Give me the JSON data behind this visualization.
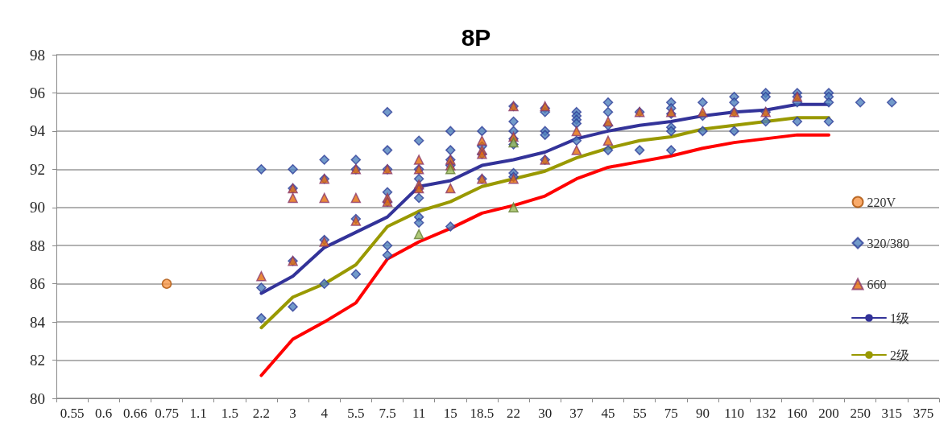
{
  "chart_data": {
    "type": "scatter",
    "title": "8P",
    "categories": [
      "0.55",
      "0.6",
      "0.66",
      "0.75",
      "1.1",
      "1.5",
      "2.2",
      "3",
      "4",
      "5.5",
      "7.5",
      "11",
      "15",
      "18.5",
      "22",
      "30",
      "37",
      "45",
      "55",
      "75",
      "90",
      "110",
      "132",
      "160",
      "200",
      "250",
      "315",
      "375"
    ],
    "ylim": [
      80,
      98
    ],
    "yticks": [
      80,
      82,
      84,
      86,
      88,
      90,
      92,
      94,
      96,
      98
    ],
    "grid": "y",
    "legend": "right",
    "series": [
      {
        "name": "220V",
        "marker": "circle",
        "color": "#f79646",
        "x": [
          "0.75"
        ],
        "values": [
          86.0
        ]
      },
      {
        "name": "320/380",
        "marker": "diamond",
        "color": "#4f81bd",
        "x": [
          "2.2",
          "2.2",
          "2.2",
          "3",
          "3",
          "3",
          "3",
          "4",
          "4",
          "4",
          "4",
          "5.5",
          "5.5",
          "5.5",
          "5.5",
          "7.5",
          "7.5",
          "7.5",
          "7.5",
          "7.5",
          "7.5",
          "7.5",
          "11",
          "11",
          "11",
          "11",
          "11",
          "11",
          "11",
          "15",
          "15",
          "15",
          "15",
          "15",
          "18.5",
          "18.5",
          "18.5",
          "18.5",
          "22",
          "22",
          "22",
          "22",
          "22",
          "22",
          "22",
          "30",
          "30",
          "30",
          "30",
          "30",
          "37",
          "37",
          "37",
          "37",
          "37",
          "45",
          "45",
          "45",
          "45",
          "55",
          "55",
          "75",
          "75",
          "75",
          "75",
          "75",
          "75",
          "90",
          "90",
          "90",
          "110",
          "110",
          "110",
          "110",
          "132",
          "132",
          "132",
          "132",
          "160",
          "160",
          "160",
          "160",
          "200",
          "200",
          "200",
          "200",
          "250",
          "315"
        ],
        "values": [
          92.0,
          85.8,
          84.2,
          92.0,
          91.0,
          87.2,
          84.8,
          92.5,
          91.5,
          88.3,
          86.0,
          92.5,
          92.0,
          89.4,
          86.5,
          95.0,
          93.0,
          92.0,
          90.8,
          90.3,
          88.0,
          87.5,
          93.5,
          92.0,
          91.5,
          91.0,
          90.5,
          89.5,
          89.2,
          94.0,
          93.0,
          92.5,
          92.2,
          89.0,
          94.0,
          93.2,
          92.8,
          91.5,
          95.3,
          94.5,
          94.0,
          93.6,
          93.3,
          91.8,
          91.6,
          95.2,
          95.0,
          94.0,
          93.8,
          92.5,
          95.0,
          94.8,
          94.6,
          94.4,
          93.5,
          95.5,
          95.0,
          94.3,
          93.0,
          95.0,
          93.0,
          95.5,
          95.2,
          94.9,
          94.2,
          94.0,
          93.0,
          95.5,
          94.8,
          94.0,
          95.8,
          95.5,
          95.0,
          94.0,
          96.0,
          95.8,
          95.0,
          94.5,
          96.0,
          95.8,
          95.5,
          94.5,
          96.0,
          95.8,
          95.5,
          94.5,
          95.5,
          95.5
        ]
      },
      {
        "name": "660",
        "marker": "triangle",
        "color": "#e36c09",
        "x": [
          "2.2",
          "3",
          "3",
          "3",
          "4",
          "4",
          "4",
          "5.5",
          "5.5",
          "5.5",
          "7.5",
          "7.5",
          "7.5",
          "11",
          "11",
          "11",
          "11",
          "15",
          "15",
          "15",
          "18.5",
          "18.5",
          "18.5",
          "18.5",
          "22",
          "22",
          "22",
          "30",
          "30",
          "37",
          "37",
          "45",
          "45",
          "55",
          "75",
          "90",
          "110",
          "132",
          "160"
        ],
        "values": [
          86.4,
          91.0,
          90.5,
          87.2,
          91.5,
          90.5,
          88.2,
          92.0,
          90.5,
          89.3,
          92.0,
          90.5,
          90.3,
          92.5,
          92.0,
          91.2,
          91.0,
          92.5,
          92.2,
          91.0,
          93.5,
          93.0,
          92.8,
          91.5,
          95.3,
          93.7,
          91.5,
          95.3,
          92.5,
          94.0,
          93.0,
          94.5,
          93.5,
          95.0,
          95.0,
          95.0,
          95.0,
          95.0,
          95.8
        ]
      },
      {
        "marker": "triangle",
        "color": "#9bbb59",
        "x": [
          "11",
          "15",
          "22",
          "22"
        ],
        "values": [
          88.6,
          92.0,
          90.0,
          93.4
        ]
      },
      {
        "name": "1级",
        "type": "line",
        "marker": "none",
        "color": "#333399",
        "x": [
          "2.2",
          "3",
          "4",
          "5.5",
          "7.5",
          "11",
          "15",
          "18.5",
          "22",
          "30",
          "37",
          "45",
          "55",
          "75",
          "90",
          "110",
          "132",
          "160",
          "200"
        ],
        "values": [
          85.5,
          86.4,
          87.9,
          88.7,
          89.5,
          91.1,
          91.4,
          92.2,
          92.5,
          92.9,
          93.6,
          94.0,
          94.3,
          94.5,
          94.8,
          95.0,
          95.1,
          95.4,
          95.4
        ]
      },
      {
        "name": "2级",
        "type": "line",
        "marker": "none",
        "color": "#999900",
        "x": [
          "2.2",
          "3",
          "4",
          "5.5",
          "7.5",
          "11",
          "15",
          "18.5",
          "22",
          "30",
          "37",
          "45",
          "55",
          "75",
          "90",
          "110",
          "132",
          "160",
          "200"
        ],
        "values": [
          83.7,
          85.3,
          86.0,
          87.0,
          89.0,
          89.8,
          90.3,
          91.1,
          91.5,
          91.9,
          92.6,
          93.1,
          93.5,
          93.7,
          94.1,
          94.3,
          94.5,
          94.7,
          94.7
        ]
      },
      {
        "type": "line",
        "marker": "none",
        "color": "#ff0000",
        "x": [
          "2.2",
          "3",
          "4",
          "5.5",
          "7.5",
          "11",
          "15",
          "18.5",
          "22",
          "30",
          "37",
          "45",
          "55",
          "75",
          "90",
          "110",
          "132",
          "160",
          "200"
        ],
        "values": [
          81.2,
          83.1,
          84.0,
          85.0,
          87.3,
          88.2,
          88.9,
          89.7,
          90.1,
          90.6,
          91.5,
          92.1,
          92.4,
          92.7,
          93.1,
          93.4,
          93.6,
          93.8,
          93.8
        ]
      }
    ]
  }
}
